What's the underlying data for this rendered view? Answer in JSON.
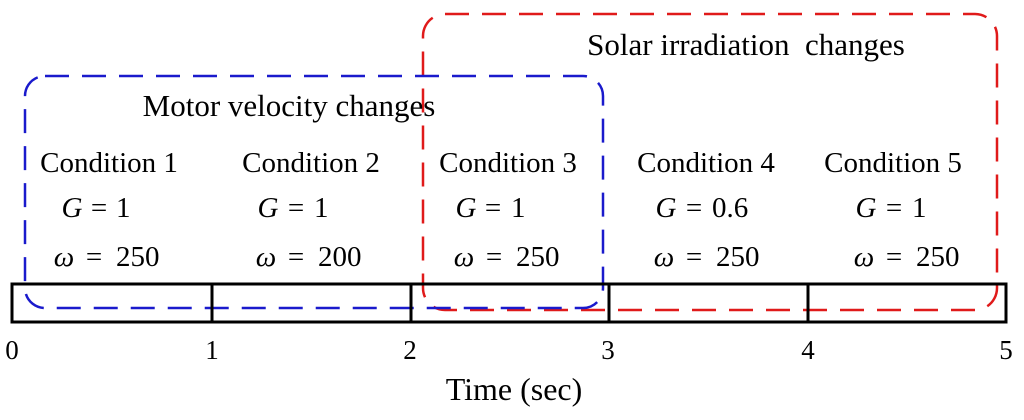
{
  "regions": {
    "motor": {
      "label": "Motor velocity changes",
      "color": "#1a1acc"
    },
    "solar": {
      "label": "Solar irradiation  changes",
      "color": "#e01a1a"
    }
  },
  "conditions": [
    {
      "title": "Condition 1",
      "g_var": "G",
      "g_value": "1",
      "w_var": "ω",
      "w_value": "250"
    },
    {
      "title": "Condition 2",
      "g_var": "G",
      "g_value": "1",
      "w_var": "ω",
      "w_value": "200"
    },
    {
      "title": "Condition 3",
      "g_var": "G",
      "g_value": "1",
      "w_var": "ω",
      "w_value": "250"
    },
    {
      "title": "Condition 4",
      "g_var": "G",
      "g_value": "0.6",
      "w_var": "ω",
      "w_value": "250"
    },
    {
      "title": "Condition 5",
      "g_var": "G",
      "g_value": "1",
      "w_var": "ω",
      "w_value": "250"
    }
  ],
  "equals_sign": "=",
  "axis": {
    "ticks": [
      "0",
      "1",
      "2",
      "3",
      "4",
      "5"
    ],
    "title": "Time (sec)"
  }
}
